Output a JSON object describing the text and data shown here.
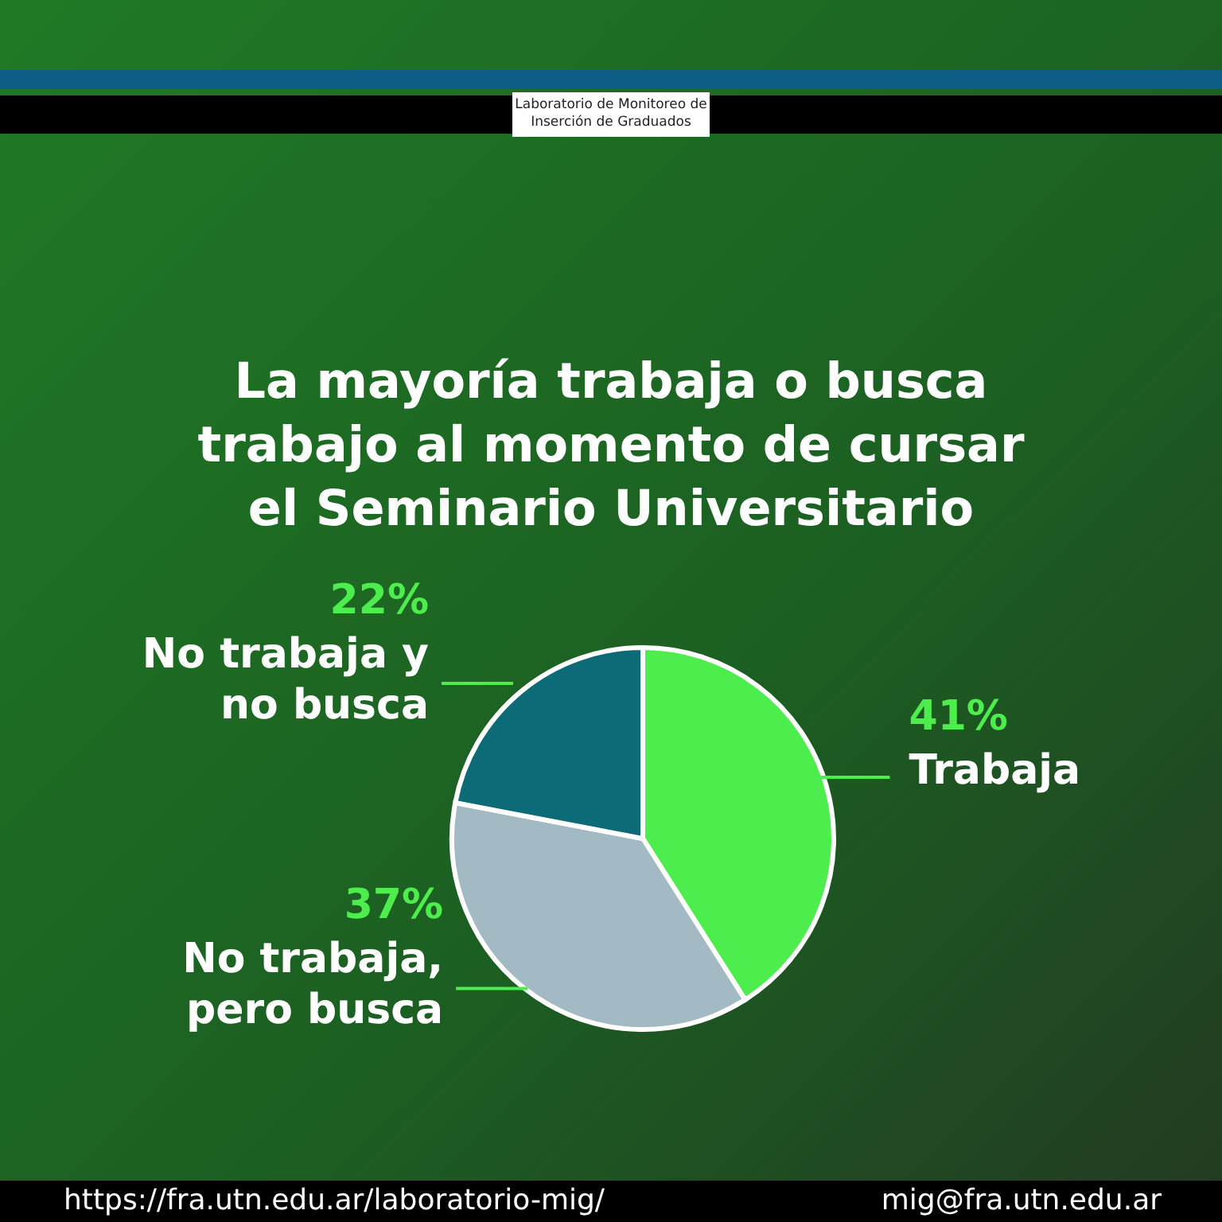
{
  "chart_data": {
    "type": "pie",
    "title": "La mayoría trabaja o busca trabajo al momento de cursar el Seminario Universitario",
    "categories": [
      "Trabaja",
      "No trabaja, pero busca",
      "No trabaja y no busca"
    ],
    "values": [
      41,
      37,
      22
    ],
    "colors": [
      "#4eed4e",
      "#a3bac4",
      "#0d6b78"
    ],
    "value_labels": [
      "41%",
      "37%",
      "22%"
    ],
    "legend": false,
    "annotations": [
      "Laboratorio de Monitoreo de Inserción de Graduados",
      "https://fra.utn.edu.ar/laboratorio-mig/",
      "mig@fra.utn.edu.ar"
    ]
  }
}
